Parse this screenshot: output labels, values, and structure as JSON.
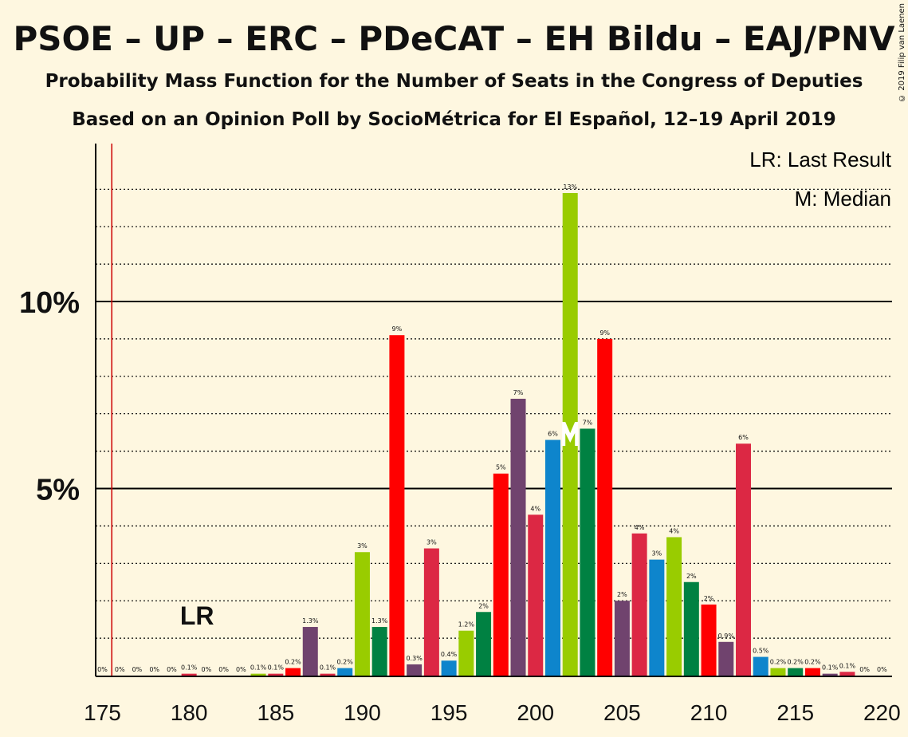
{
  "title": "PSOE – UP – ERC – PDeCAT – EH Bildu – EAJ/PNV",
  "subtitle": "Probability Mass Function for the Number of Seats in the Congress of Deputies",
  "source": "Based on an Opinion Poll by SocioMétrica for El Español, 12–19 April 2019",
  "copyright": "© 2019 Filip van Laenen",
  "legend": {
    "lr": "LR: Last Result",
    "m": "M: Median"
  },
  "markers": {
    "lr_label": "LR",
    "median_label": "M"
  },
  "chart_data": {
    "type": "bar",
    "x": [
      175,
      176,
      177,
      178,
      179,
      180,
      181,
      182,
      183,
      184,
      185,
      186,
      187,
      188,
      189,
      190,
      191,
      192,
      193,
      194,
      195,
      196,
      197,
      198,
      199,
      200,
      201,
      202,
      203,
      204,
      205,
      206,
      207,
      208,
      209,
      210,
      211,
      212,
      213,
      214,
      215,
      216,
      217,
      218,
      219,
      220
    ],
    "values": [
      0,
      0,
      0,
      0,
      0,
      0.05,
      0,
      0,
      0,
      0.05,
      0.05,
      0.2,
      1.3,
      0.05,
      0.2,
      3.3,
      1.3,
      9.1,
      0.3,
      3.4,
      0.4,
      1.2,
      1.7,
      5.4,
      7.4,
      4.3,
      6.3,
      12.9,
      6.6,
      9.0,
      2.0,
      3.8,
      3.1,
      3.7,
      2.5,
      1.9,
      0.9,
      6.2,
      0.5,
      0.2,
      0.2,
      0.2,
      0.05,
      0.1,
      0,
      0
    ],
    "data_labels": [
      "0%",
      "0%",
      "0%",
      "0%",
      "0%",
      "0.1%",
      "0%",
      "0%",
      "0%",
      "0.1%",
      "0.1%",
      "0.2%",
      "1.3%",
      "0.1%",
      "0.2%",
      "3%",
      "1.3%",
      "9%",
      "0.3%",
      "3%",
      "0.4%",
      "1.2%",
      "2%",
      "5%",
      "7%",
      "4%",
      "6%",
      "13%",
      "7%",
      "9%",
      "2%",
      "4%",
      "3%",
      "4%",
      "2%",
      "2%",
      "0.9%",
      "6%",
      "0.5%",
      "0.2%",
      "0.2%",
      "0.2%",
      "0.1%",
      "0.1%",
      "0%",
      "0%"
    ],
    "colors": [
      "#dc2844",
      "#dc2844",
      "#dc2844",
      "#dc2844",
      "#dc2844",
      "#dc2844",
      "#dc2844",
      "#dc2844",
      "#dc2844",
      "#99cc00",
      "#dc2844",
      "#ff0000",
      "#70436e",
      "#dc2844",
      "#0e85cc",
      "#99cc00",
      "#008142",
      "#ff0000",
      "#70436e",
      "#dc2844",
      "#0e85cc",
      "#99cc00",
      "#008142",
      "#ff0000",
      "#70436e",
      "#dc2844",
      "#0e85cc",
      "#99cc00",
      "#008142",
      "#ff0000",
      "#70436e",
      "#dc2844",
      "#0e85cc",
      "#99cc00",
      "#008142",
      "#ff0000",
      "#70436e",
      "#dc2844",
      "#0e85cc",
      "#99cc00",
      "#008142",
      "#ff0000",
      "#70436e",
      "#dc2844",
      "#0e85cc",
      "#99cc00"
    ],
    "xticks": [
      175,
      180,
      185,
      190,
      195,
      200,
      205,
      210,
      215,
      220
    ],
    "xtick_labels": [
      "175",
      "180",
      "185",
      "190",
      "195",
      "200",
      "205",
      "210",
      "215",
      "220"
    ],
    "yticks": [
      5,
      10
    ],
    "ytick_labels": [
      "5%",
      "10%"
    ],
    "ylim": [
      0,
      14
    ],
    "xlim": [
      175,
      220
    ],
    "last_result": 176,
    "median": 202,
    "grid": "dotted every 1%, solid at 5% and 10%"
  }
}
